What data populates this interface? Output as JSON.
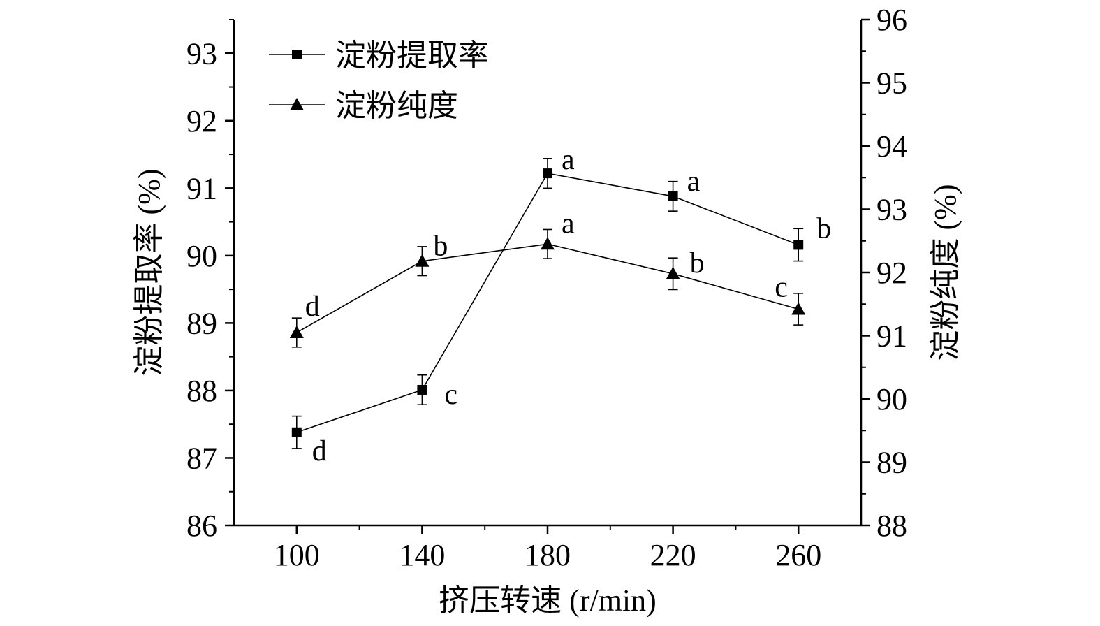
{
  "chart_data": {
    "type": "line",
    "xlabel": "挤压转速 (r/min)",
    "ylabel_left": "淀粉提取率 (%)",
    "ylabel_right": "淀粉纯度 (%)",
    "x_ticks": [
      100,
      140,
      180,
      220,
      260
    ],
    "xlim": [
      80,
      280
    ],
    "y_left_lim": [
      86,
      93.5
    ],
    "y_left_ticks": [
      86,
      87,
      88,
      89,
      90,
      91,
      92,
      93
    ],
    "y_right_lim": [
      88,
      96
    ],
    "y_right_ticks": [
      88,
      89,
      90,
      91,
      92,
      93,
      94,
      95,
      96
    ],
    "legend_position": "top-left",
    "grid": false,
    "colors": {
      "line": "#000000",
      "background": "#ffffff"
    },
    "series": [
      {
        "name": "淀粉提取率",
        "axis": "left",
        "marker": "square",
        "x": [
          100,
          140,
          180,
          220,
          260
        ],
        "y": [
          87.38,
          88.01,
          91.22,
          90.88,
          90.16
        ],
        "error": [
          0.24,
          0.22,
          0.22,
          0.22,
          0.24
        ],
        "labels": [
          "d",
          "c",
          "a",
          "a",
          "b"
        ]
      },
      {
        "name": "淀粉纯度",
        "axis": "right",
        "marker": "triangle",
        "x": [
          100,
          140,
          180,
          220,
          260
        ],
        "y": [
          91.05,
          92.18,
          92.45,
          91.98,
          91.42
        ],
        "error": [
          0.23,
          0.23,
          0.23,
          0.25,
          0.25
        ],
        "labels": [
          "d",
          "b",
          "a",
          "b",
          "c"
        ]
      }
    ]
  }
}
